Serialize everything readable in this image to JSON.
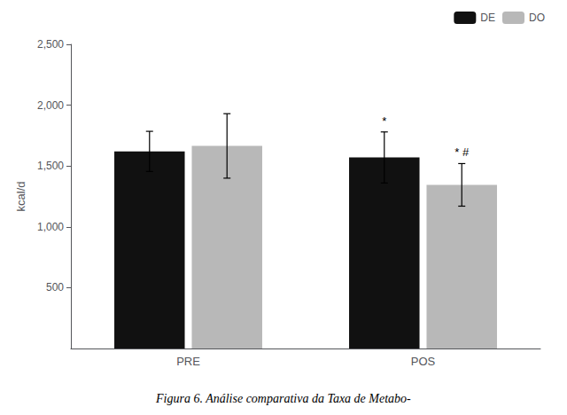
{
  "chart_data": {
    "type": "bar",
    "categories": [
      "PRE",
      "POS"
    ],
    "series": [
      {
        "name": "DE",
        "color": "#111111",
        "values": [
          1620,
          1570
        ],
        "errors": [
          165,
          210
        ]
      },
      {
        "name": "DO",
        "color": "#b8b8b8",
        "values": [
          1665,
          1345
        ],
        "errors": [
          265,
          175
        ]
      }
    ],
    "ylabel": "kcal/d",
    "ylim": [
      0,
      2500
    ],
    "yticks": [
      500,
      1000,
      1500,
      2000,
      2500
    ],
    "grid": false,
    "legend": "upper right",
    "annotations": [
      {
        "text": "*",
        "category": "POS",
        "series": "DE"
      },
      {
        "text": "* #",
        "category": "POS",
        "series": "DO"
      }
    ],
    "caption": "Figura 6. Análise comparativa da Taxa de Metabo-"
  }
}
